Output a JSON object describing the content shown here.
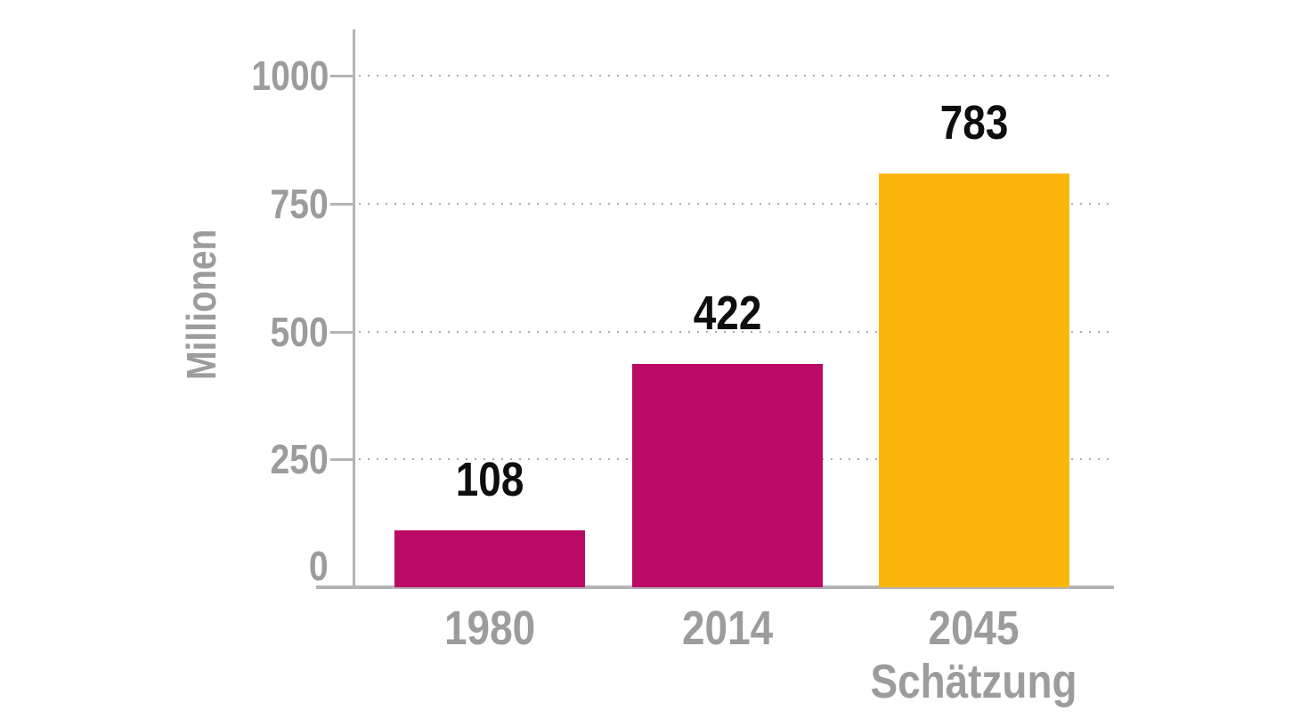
{
  "chart_data": {
    "type": "bar",
    "title": "",
    "xlabel": "",
    "ylabel": "Millionen",
    "ylim": [
      0,
      1000
    ],
    "yticks": [
      0,
      250,
      500,
      750,
      1000
    ],
    "grid": "horizontal-dotted",
    "legend": "none",
    "categories": [
      "1980",
      "2014",
      "2045\nSchätzung"
    ],
    "values": [
      108,
      422,
      783
    ],
    "value_labels": [
      "108",
      "422",
      "783"
    ],
    "bar_colors": [
      "#ba0a66",
      "#ba0a66",
      "#fbb60e"
    ]
  },
  "colors": {
    "bar_magenta": "#ba0a66",
    "bar_yellow": "#fbb60e",
    "axis_line": "#b4b4b4",
    "grid_dots": "#ababab",
    "axis_text": "#9c9c9c",
    "value_text": "#0e0e0e",
    "background": "#ffffff"
  }
}
